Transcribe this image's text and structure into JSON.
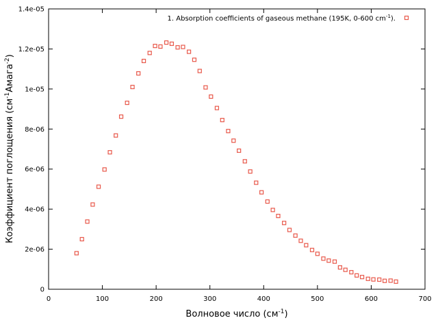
{
  "chart_data": {
    "type": "scatter",
    "title": "",
    "xlabel": "Волновое число (см",
    "xlabel_sup": "-1",
    "xlabel_end": ")",
    "ylabel": "Коэффициент поглощения (см",
    "ylabel_sup1": "-1",
    "ylabel_mid": "Амага",
    "ylabel_sup2": "-2",
    "ylabel_end": ")",
    "xlim": [
      0,
      700
    ],
    "ylim": [
      0,
      1.4e-05
    ],
    "x_ticks": [
      0,
      100,
      200,
      300,
      400,
      500,
      600,
      700
    ],
    "x_tick_labels": [
      "0",
      "100",
      "200",
      "300",
      "400",
      "500",
      "600",
      "700"
    ],
    "y_ticks": [
      0,
      2e-06,
      4e-06,
      6e-06,
      8e-06,
      1e-05,
      1.2e-05,
      1.4e-05
    ],
    "y_tick_labels": [
      "0",
      "2e-06",
      "4e-06",
      "6e-06",
      "8e-06",
      "1e-05",
      "1.2e-05",
      "1.4e-05"
    ],
    "grid": false,
    "legend_position": "top-right",
    "marker_color": "#e8584a",
    "series": [
      {
        "name": "1. Absorption coefficients of gaseous methane (195K, 0-600 cm",
        "name_sup": "-1",
        "name_end": ").",
        "x": [
          52,
          62,
          72,
          82,
          93,
          104,
          114,
          125,
          135,
          146,
          156,
          167,
          177,
          188,
          198,
          208,
          219,
          229,
          240,
          250,
          261,
          271,
          281,
          292,
          302,
          313,
          323,
          334,
          344,
          354,
          365,
          375,
          386,
          396,
          407,
          417,
          427,
          438,
          448,
          459,
          469,
          479,
          490,
          500,
          511,
          521,
          532,
          542,
          552,
          563,
          573,
          583,
          594,
          604,
          615,
          625,
          636,
          646
        ],
        "y": [
          1.8e-06,
          2.5e-06,
          3.38e-06,
          4.23e-06,
          5.12e-06,
          5.98e-06,
          6.84e-06,
          7.68e-06,
          8.62e-06,
          9.31e-06,
          1.01e-05,
          1.078e-05,
          1.14e-05,
          1.18e-05,
          1.215e-05,
          1.212e-05,
          1.232e-05,
          1.226e-05,
          1.208e-05,
          1.21e-05,
          1.186e-05,
          1.146e-05,
          1.09e-05,
          1.008e-05,
          9.62e-06,
          9.05e-06,
          8.45e-06,
          7.9e-06,
          7.42e-06,
          6.92e-06,
          6.39e-06,
          5.88e-06,
          5.32e-06,
          4.84e-06,
          4.38e-06,
          3.96e-06,
          3.66e-06,
          3.31e-06,
          2.96e-06,
          2.68e-06,
          2.42e-06,
          2.2e-06,
          1.96e-06,
          1.77e-06,
          1.53e-06,
          1.43e-06,
          1.38e-06,
          1.09e-06,
          9.7e-07,
          8.5e-07,
          6.9e-07,
          6.1e-07,
          5.2e-07,
          4.9e-07,
          4.8e-07,
          4.2e-07,
          4.3e-07,
          3.8e-07
        ]
      }
    ]
  }
}
